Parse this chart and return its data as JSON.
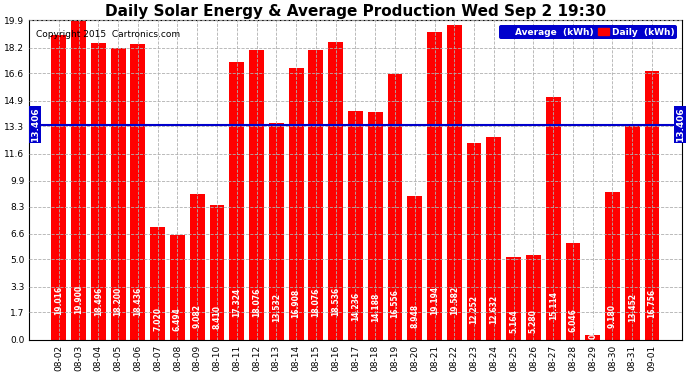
{
  "title": "Daily Solar Energy & Average Production Wed Sep 2 19:30",
  "copyright": "Copyright 2015  Cartronics.com",
  "categories": [
    "08-02",
    "08-03",
    "08-04",
    "08-05",
    "08-06",
    "08-07",
    "08-08",
    "08-09",
    "08-10",
    "08-11",
    "08-12",
    "08-13",
    "08-14",
    "08-15",
    "08-16",
    "08-17",
    "08-18",
    "08-19",
    "08-20",
    "08-21",
    "08-22",
    "08-23",
    "08-24",
    "08-25",
    "08-26",
    "08-27",
    "08-28",
    "08-29",
    "08-30",
    "08-31",
    "09-01"
  ],
  "values": [
    19.016,
    19.9,
    18.496,
    18.2,
    18.436,
    7.02,
    6.494,
    9.082,
    8.41,
    17.324,
    18.076,
    13.532,
    16.908,
    18.076,
    18.536,
    14.236,
    14.188,
    16.556,
    8.948,
    19.194,
    19.582,
    12.252,
    12.632,
    5.164,
    5.28,
    15.114,
    6.046,
    0.268,
    9.18,
    13.452,
    16.756
  ],
  "average": 13.406,
  "bar_color": "#ff0000",
  "avg_line_color": "#0000cc",
  "background_color": "#ffffff",
  "grid_color": "#b0b0b0",
  "ylim": [
    0.0,
    19.9
  ],
  "yticks": [
    0.0,
    1.7,
    3.3,
    5.0,
    6.6,
    8.3,
    9.9,
    11.6,
    13.3,
    14.9,
    16.6,
    18.2,
    19.9
  ],
  "avg_label": "13.406",
  "title_fontsize": 11,
  "tick_fontsize": 6.5,
  "bar_label_fontsize": 5.5,
  "copyright_fontsize": 6.5
}
